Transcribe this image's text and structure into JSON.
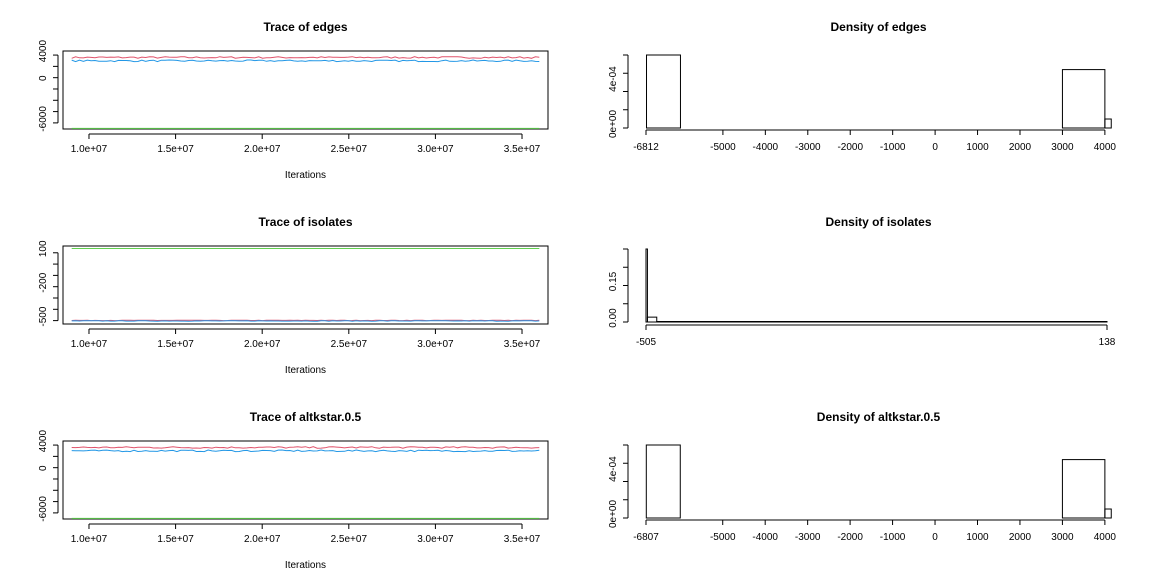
{
  "chart_data": [
    {
      "type": "line",
      "title": "Trace of edges",
      "xlabel": "Iterations",
      "ylabel": "",
      "x_ticks": [
        "1.0e+07",
        "1.5e+07",
        "2.0e+07",
        "2.5e+07",
        "3.0e+07",
        "3.5e+07"
      ],
      "y_ticks": [
        "4000",
        "0",
        "-6000"
      ],
      "xlim": [
        8500000,
        36500000
      ],
      "ylim": [
        -6900,
        4600
      ],
      "x_range": [
        9000000,
        36000000
      ],
      "series": [
        {
          "color": "#DF536B",
          "level": 3650,
          "noise": 120
        },
        {
          "color": "#2297E6",
          "level": 3150,
          "noise": 120
        },
        {
          "color": "#61D04F",
          "level": -6812,
          "noise": 0
        }
      ]
    },
    {
      "type": "bar",
      "title": "Density of edges",
      "xlabel": "",
      "ylabel": "",
      "x_ticks": [
        "-6812",
        "-5000",
        "-4000",
        "-3000",
        "-2000",
        "-1000",
        "0",
        "1000",
        "2000",
        "3000",
        "4000"
      ],
      "x_tick_values": [
        -6812,
        -5000,
        -4000,
        -3000,
        -2000,
        -1000,
        0,
        1000,
        2000,
        3000,
        4000
      ],
      "y_ticks": [
        "0e+00",
        "4e-04"
      ],
      "xlim": [
        -6812,
        4050
      ],
      "ylim": [
        0,
        0.00065
      ],
      "bins": [
        {
          "x0": -6800,
          "x1": -6000,
          "density": 0.00065
        },
        {
          "x0": -6000,
          "x1": 3000,
          "density": 0
        },
        {
          "x0": 3000,
          "x1": 4000,
          "density": 0.00052
        },
        {
          "x0": 4000,
          "x1": 4150,
          "density": 8e-05
        }
      ]
    },
    {
      "type": "line",
      "title": "Trace of isolates",
      "xlabel": "Iterations",
      "ylabel": "",
      "x_ticks": [
        "1.0e+07",
        "1.5e+07",
        "2.0e+07",
        "2.5e+07",
        "3.0e+07",
        "3.5e+07"
      ],
      "y_ticks": [
        "100",
        "-200",
        "-500"
      ],
      "xlim": [
        8500000,
        36500000
      ],
      "ylim": [
        -530,
        160
      ],
      "x_range": [
        9000000,
        36000000
      ],
      "series": [
        {
          "color": "#61D04F",
          "level": 138,
          "noise": 0
        },
        {
          "color": "#DF536B",
          "level": -498,
          "noise": 2
        },
        {
          "color": "#2297E6",
          "level": -503,
          "noise": 2
        }
      ]
    },
    {
      "type": "bar",
      "title": "Density of isolates",
      "xlabel": "",
      "ylabel": "",
      "x_ticks": [
        "-505",
        "138"
      ],
      "x_tick_values": [
        -505,
        138
      ],
      "y_ticks": [
        "0.00",
        "0.15"
      ],
      "xlim": [
        -505,
        138
      ],
      "ylim": [
        0,
        0.3
      ],
      "bins": [
        {
          "x0": -505,
          "x1": -503,
          "density": 0.3
        },
        {
          "x0": -503,
          "x1": -490,
          "density": 0.02
        },
        {
          "x0": -490,
          "x1": 138,
          "density": 0.002
        }
      ]
    },
    {
      "type": "line",
      "title": "Trace of altkstar.0.5",
      "xlabel": "Iterations",
      "ylabel": "",
      "x_ticks": [
        "1.0e+07",
        "1.5e+07",
        "2.0e+07",
        "2.5e+07",
        "3.0e+07",
        "3.5e+07"
      ],
      "y_ticks": [
        "4000",
        "0",
        "-6000"
      ],
      "xlim": [
        8500000,
        36500000
      ],
      "ylim": [
        -6900,
        4600
      ],
      "x_range": [
        9000000,
        36000000
      ],
      "series": [
        {
          "color": "#DF536B",
          "level": 3650,
          "noise": 120
        },
        {
          "color": "#2297E6",
          "level": 3150,
          "noise": 120
        },
        {
          "color": "#61D04F",
          "level": -6807,
          "noise": 0
        }
      ]
    },
    {
      "type": "bar",
      "title": "Density of altkstar.0.5",
      "xlabel": "",
      "ylabel": "",
      "x_ticks": [
        "-6807",
        "-5000",
        "-4000",
        "-3000",
        "-2000",
        "-1000",
        "0",
        "1000",
        "2000",
        "3000",
        "4000"
      ],
      "x_tick_values": [
        -6807,
        -5000,
        -4000,
        -3000,
        -2000,
        -1000,
        0,
        1000,
        2000,
        3000,
        4000
      ],
      "y_ticks": [
        "0e+00",
        "4e-04"
      ],
      "xlim": [
        -6807,
        4050
      ],
      "ylim": [
        0,
        0.00065
      ],
      "bins": [
        {
          "x0": -6800,
          "x1": -6000,
          "density": 0.00065
        },
        {
          "x0": -6000,
          "x1": 3000,
          "density": 0
        },
        {
          "x0": 3000,
          "x1": 4000,
          "density": 0.00052
        },
        {
          "x0": 4000,
          "x1": 4150,
          "density": 8e-05
        }
      ]
    }
  ]
}
